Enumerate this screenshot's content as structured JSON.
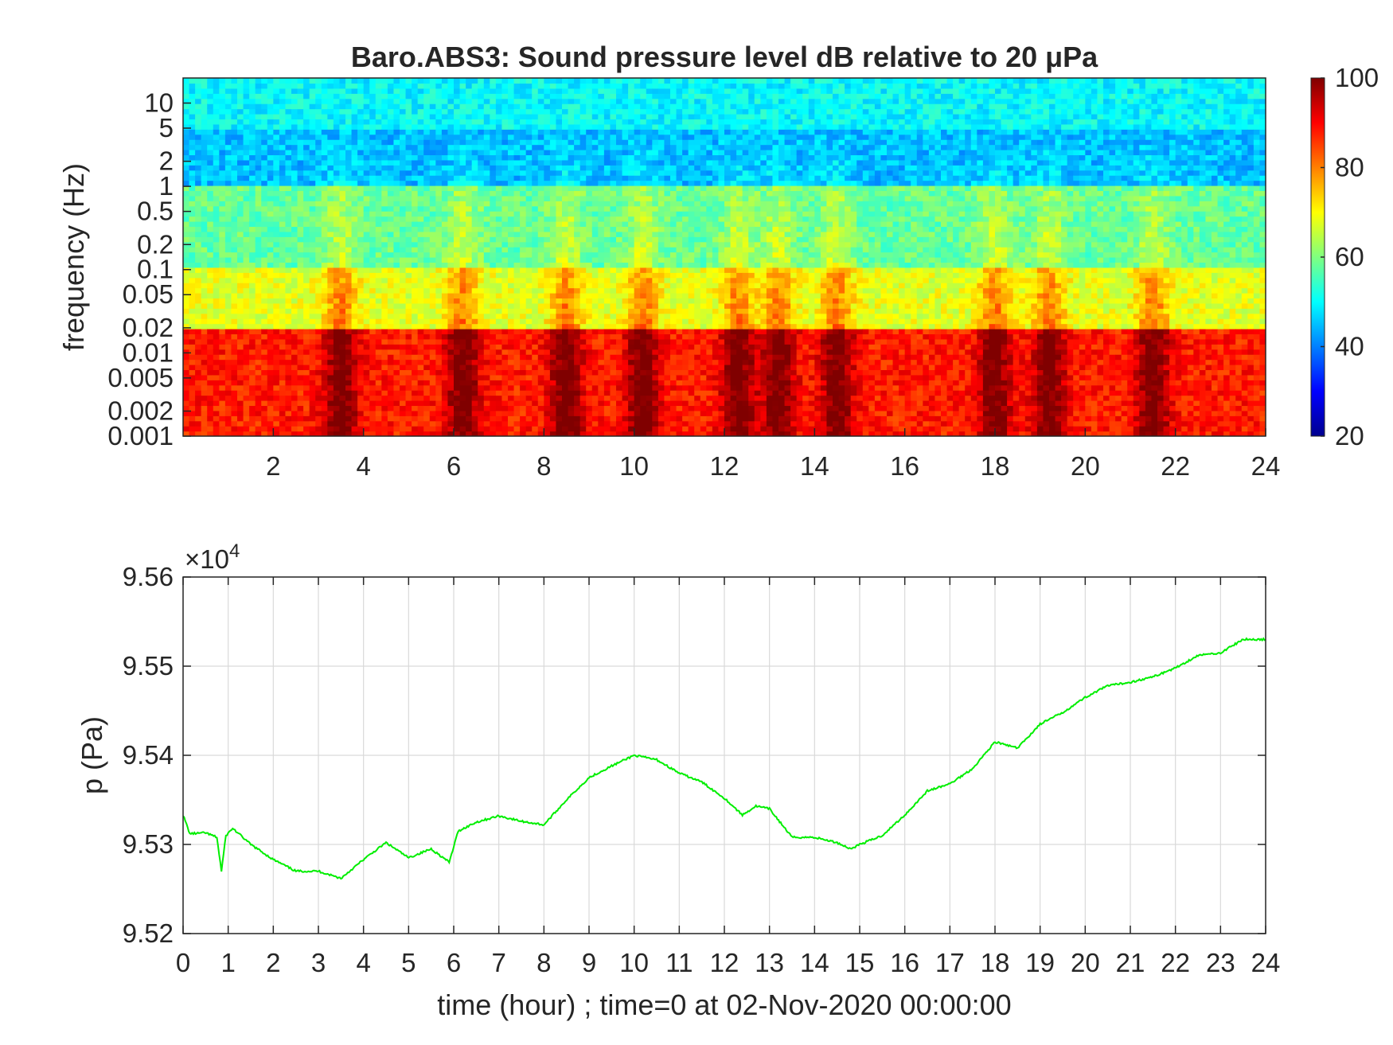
{
  "chart_data": [
    {
      "type": "heatmap",
      "title": "Baro.ABS3: Sound pressure level dB relative to 20 μPa",
      "xlabel": "",
      "ylabel": "frequency (Hz)",
      "xlim": [
        0,
        24
      ],
      "ylim": [
        0.001,
        20
      ],
      "y_scale": "log",
      "x_ticks": [
        "2",
        "4",
        "6",
        "8",
        "10",
        "12",
        "14",
        "16",
        "18",
        "20",
        "22",
        "24"
      ],
      "y_ticks": [
        "0.001",
        "0.002",
        "0.005",
        "0.01",
        "0.02",
        "0.05",
        "0.1",
        "0.2",
        "0.5",
        "1",
        "2",
        "5",
        "10"
      ],
      "colormap": "jet",
      "colorbar": {
        "range": [
          20,
          100
        ],
        "ticks": [
          "20",
          "40",
          "60",
          "80",
          "100"
        ]
      },
      "bands": [
        {
          "freq_range": [
            5,
            20
          ],
          "level_db": 50
        },
        {
          "freq_range": [
            1,
            5
          ],
          "level_db": 45
        },
        {
          "freq_range": [
            0.1,
            1
          ],
          "level_db": 58
        },
        {
          "freq_range": [
            0.02,
            0.1
          ],
          "level_db": 68
        },
        {
          "freq_range": [
            0.001,
            0.02
          ],
          "level_db": 88
        }
      ],
      "activity_peaks_hour": [
        3.5,
        6.2,
        8.5,
        10.2,
        12.3,
        13.2,
        14.5,
        18.0,
        19.2,
        21.5
      ]
    },
    {
      "type": "line",
      "title": "",
      "xlabel": "time (hour) ; time=0 at 02-Nov-2020 00:00:00",
      "ylabel": "p (Pa)",
      "xlim": [
        0,
        24
      ],
      "ylim": [
        95200,
        95600
      ],
      "y_multiplier": "×10^4",
      "x_ticks": [
        "0",
        "1",
        "2",
        "3",
        "4",
        "5",
        "6",
        "7",
        "8",
        "9",
        "10",
        "11",
        "12",
        "13",
        "14",
        "15",
        "16",
        "17",
        "18",
        "19",
        "20",
        "21",
        "22",
        "23",
        "24"
      ],
      "y_ticks": [
        "9.52",
        "9.53",
        "9.54",
        "9.55",
        "9.56"
      ],
      "grid": true,
      "line_color": "#00ee00",
      "series": [
        {
          "x": [
            0,
            0.15,
            0.5,
            0.75,
            0.85,
            0.95,
            1.1,
            1.5,
            2.0,
            2.5,
            3.0,
            3.5,
            4.0,
            4.5,
            5.0,
            5.5,
            5.9,
            6.1,
            6.5,
            7.0,
            7.5,
            8.0,
            8.5,
            9.0,
            9.5,
            10.0,
            10.5,
            11.0,
            11.5,
            12.0,
            12.4,
            12.7,
            13.0,
            13.5,
            14.0,
            14.5,
            14.8,
            15.0,
            15.5,
            16.0,
            16.5,
            17.0,
            17.5,
            18.0,
            18.5,
            19.0,
            19.5,
            20.0,
            20.5,
            21.0,
            21.5,
            22.0,
            22.5,
            23.0,
            23.5,
            24.0
          ],
          "y": [
            95333,
            95312,
            95313,
            95308,
            95270,
            95310,
            95318,
            95300,
            95283,
            95270,
            95270,
            95262,
            95283,
            95302,
            95285,
            95295,
            95280,
            95315,
            95325,
            95332,
            95326,
            95322,
            95350,
            95375,
            95388,
            95400,
            95395,
            95380,
            95370,
            95352,
            95333,
            95343,
            95340,
            95308,
            95308,
            95302,
            95295,
            95300,
            95310,
            95333,
            95360,
            95368,
            95385,
            95415,
            95408,
            95435,
            95448,
            95465,
            95478,
            95482,
            95488,
            95498,
            95512,
            95515,
            95530,
            95530
          ]
        }
      ]
    }
  ]
}
